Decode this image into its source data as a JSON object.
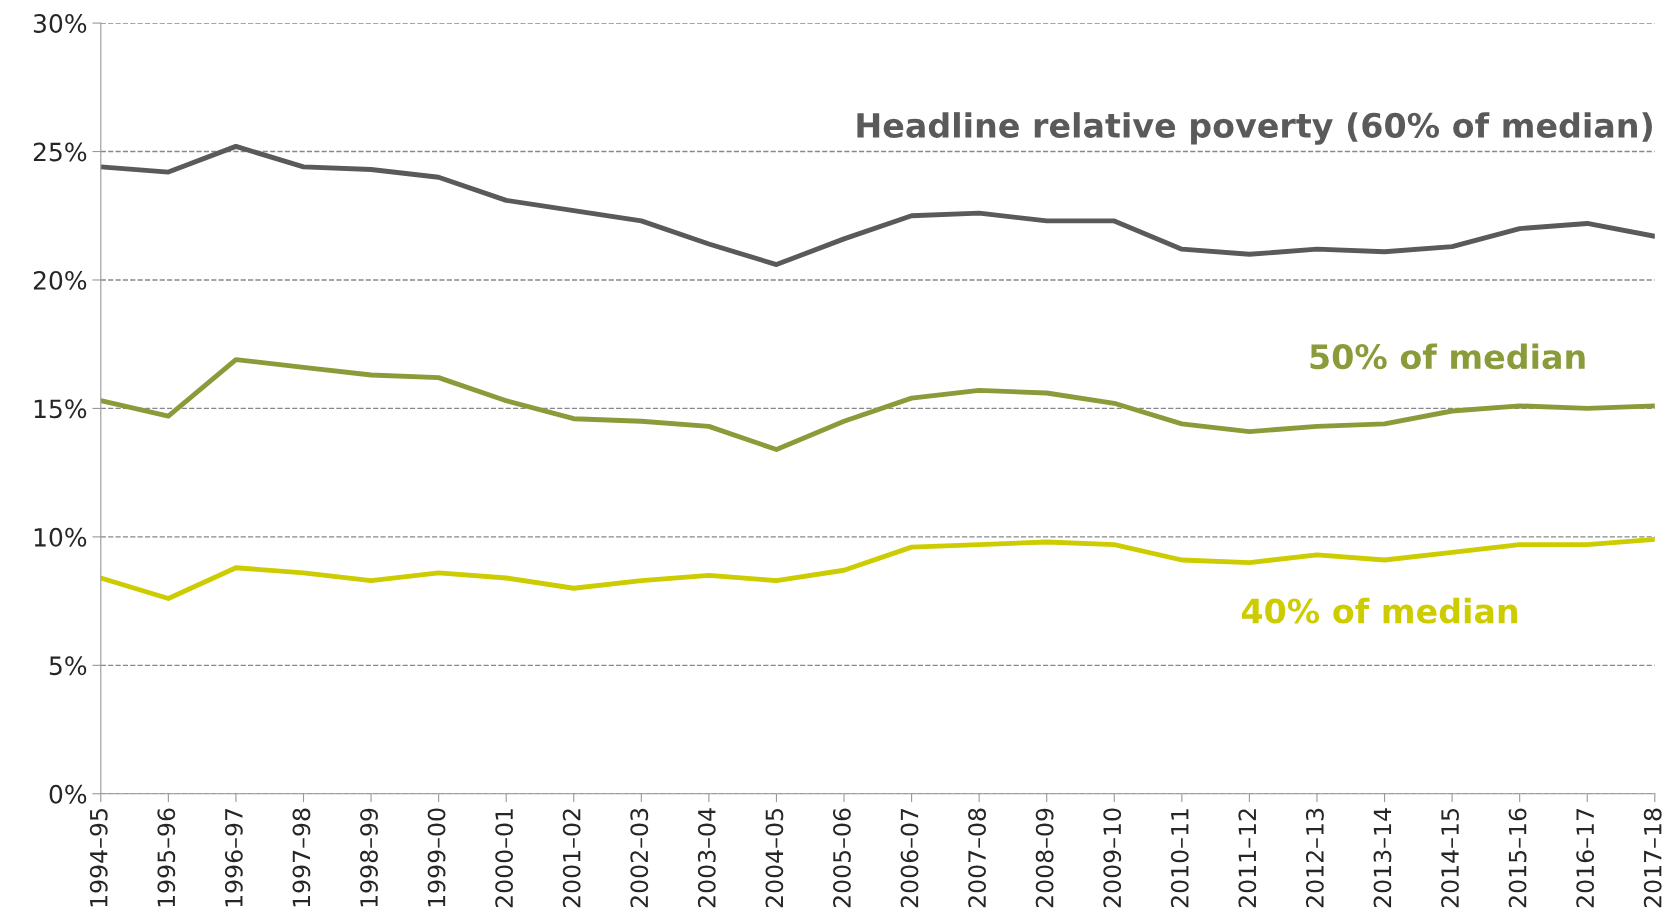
{
  "chart_data": {
    "type": "line",
    "categories": [
      "1994–95",
      "1995–96",
      "1996–97",
      "1997–98",
      "1998–99",
      "1999–00",
      "2000–01",
      "2001–02",
      "2002–03",
      "2003–04",
      "2004–05",
      "2005–06",
      "2006–07",
      "2007–08",
      "2008–09",
      "2009–10",
      "2010–11",
      "2011–12",
      "2012–13",
      "2013–14",
      "2014–15",
      "2015–16",
      "2016–17",
      "2017–18"
    ],
    "series": [
      {
        "name": "Headline relative poverty (60% of median)",
        "color": "#5a5a5a",
        "values": [
          24.4,
          24.2,
          25.2,
          24.4,
          24.3,
          24.0,
          23.1,
          22.7,
          22.3,
          21.4,
          20.6,
          21.6,
          22.5,
          22.6,
          22.3,
          22.3,
          21.2,
          21.0,
          21.2,
          21.1,
          21.3,
          22.0,
          22.2,
          21.7
        ]
      },
      {
        "name": "50% of median",
        "color": "#8a9c3a",
        "values": [
          15.3,
          14.7,
          16.9,
          16.6,
          16.3,
          16.2,
          15.3,
          14.6,
          14.5,
          14.3,
          13.4,
          14.5,
          15.4,
          15.7,
          15.6,
          15.2,
          14.4,
          14.1,
          14.3,
          14.4,
          14.9,
          15.1,
          15.0,
          15.1
        ]
      },
      {
        "name": "40% of median",
        "color": "#cccc00",
        "values": [
          8.4,
          7.6,
          8.8,
          8.6,
          8.3,
          8.6,
          8.4,
          8.0,
          8.3,
          8.5,
          8.3,
          8.7,
          9.6,
          9.7,
          9.8,
          9.7,
          9.1,
          9.0,
          9.3,
          9.1,
          9.4,
          9.7,
          9.7,
          9.9
        ]
      }
    ],
    "ylim": [
      0,
      30
    ],
    "yticks": [
      {
        "value": 0,
        "label": "0%"
      },
      {
        "value": 5,
        "label": "5%"
      },
      {
        "value": 10,
        "label": "10%"
      },
      {
        "value": 15,
        "label": "15%"
      },
      {
        "value": 20,
        "label": "20%"
      },
      {
        "value": 25,
        "label": "25%"
      },
      {
        "value": 30,
        "label": "30%"
      }
    ],
    "grid": "y",
    "legend": false,
    "marker": "none",
    "line_style": "solid"
  }
}
